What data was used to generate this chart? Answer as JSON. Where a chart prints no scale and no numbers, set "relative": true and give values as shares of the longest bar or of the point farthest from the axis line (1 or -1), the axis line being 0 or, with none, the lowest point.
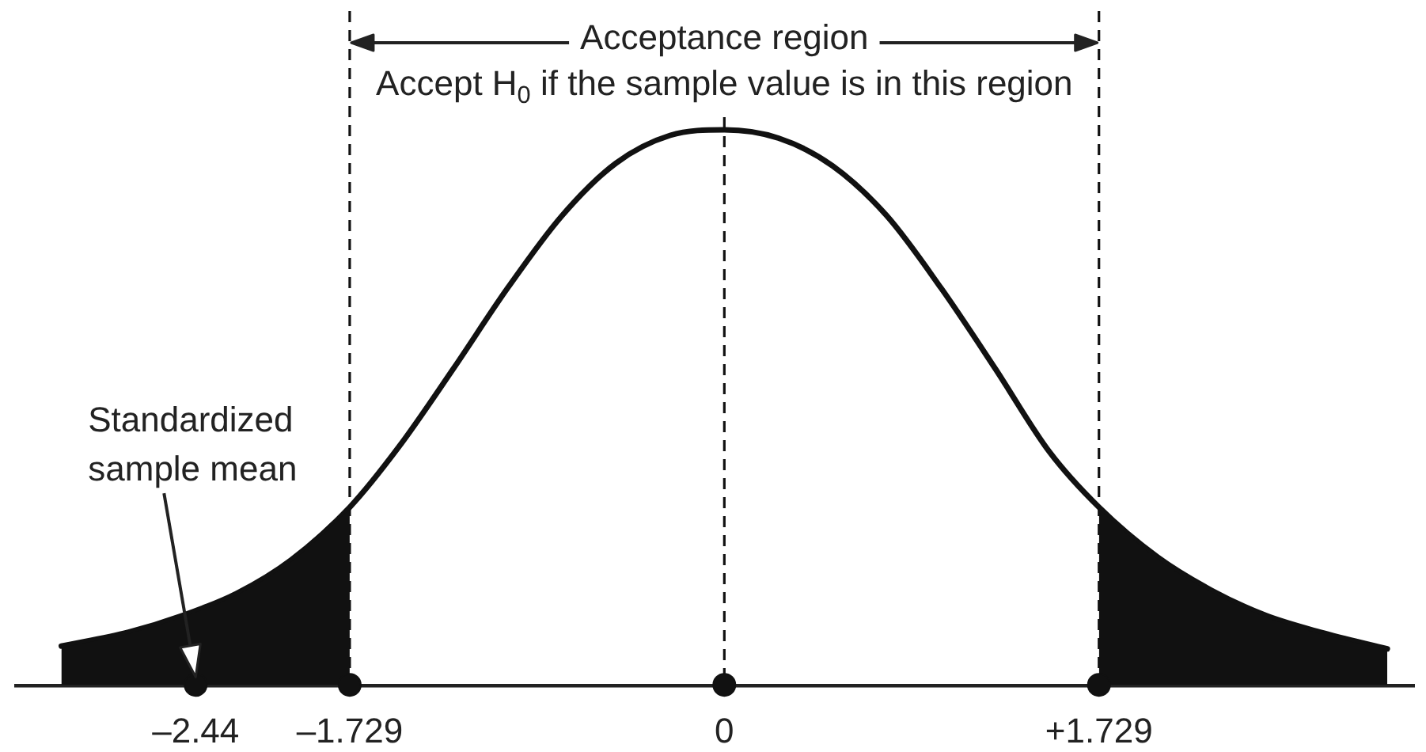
{
  "chart_data": {
    "type": "line",
    "relative": true,
    "annotations": [
      "Acceptance region",
      "Accept H$_{0}$ if the sample value is in this region",
      "Standardized sample mean"
    ],
    "xlim": [
      -3.27,
      3.18
    ],
    "xticks": [
      {
        "value": -2.44,
        "label": "–2.44"
      },
      {
        "value": -1.729,
        "label": "–1.729"
      },
      0,
      {
        "value": 1.729,
        "label": "+1.729"
      }
    ],
    "tick_labels": "x",
    "series": [
      {
        "color": "#111111",
        "x": [
          -3.06,
          -2.75,
          -2.5,
          -2.25,
          -2,
          -1.729,
          -1.5,
          -1.25,
          -1,
          -0.75,
          -0.5,
          -0.25,
          0,
          0.25,
          0.5,
          0.75,
          1,
          1.25,
          1.5,
          1.729,
          2,
          2.25,
          2.5,
          2.75,
          3.06
        ],
        "values": [
          0.07,
          0.095,
          0.125,
          0.165,
          0.225,
          0.32,
          0.43,
          0.57,
          0.715,
          0.845,
          0.94,
          0.99,
          1,
          0.985,
          0.935,
          0.845,
          0.715,
          0.57,
          0.42,
          0.32,
          0.23,
          0.17,
          0.125,
          0.095,
          0.065
        ]
      },
      {
        "type": "area",
        "color": "#111111",
        "x": [
          -3.06,
          -2.75,
          -2.5,
          -2.25,
          -2,
          -1.729
        ],
        "values": [
          0.07,
          0.095,
          0.125,
          0.165,
          0.225,
          0.32
        ]
      },
      {
        "type": "area",
        "color": "#111111",
        "x": [
          1.729,
          2,
          2.25,
          2.5,
          2.75,
          3.06
        ],
        "values": [
          0.32,
          0.23,
          0.17,
          0.125,
          0.095,
          0.065
        ]
      },
      {
        "type": "scatter",
        "color": "#111111",
        "marker": "circle",
        "x": [
          -2.44,
          -1.729,
          0,
          1.729
        ],
        "values": [
          0,
          0,
          0,
          0
        ]
      }
    ],
    "ref_lines": [
      {
        "axis": "x",
        "value": -1.729,
        "line_style": "dashed",
        "color": "#111111"
      },
      {
        "axis": "x",
        "value": 0,
        "line_style": "dashed",
        "color": "#111111"
      },
      {
        "axis": "x",
        "value": 1.729,
        "line_style": "dashed",
        "color": "#111111"
      }
    ]
  }
}
